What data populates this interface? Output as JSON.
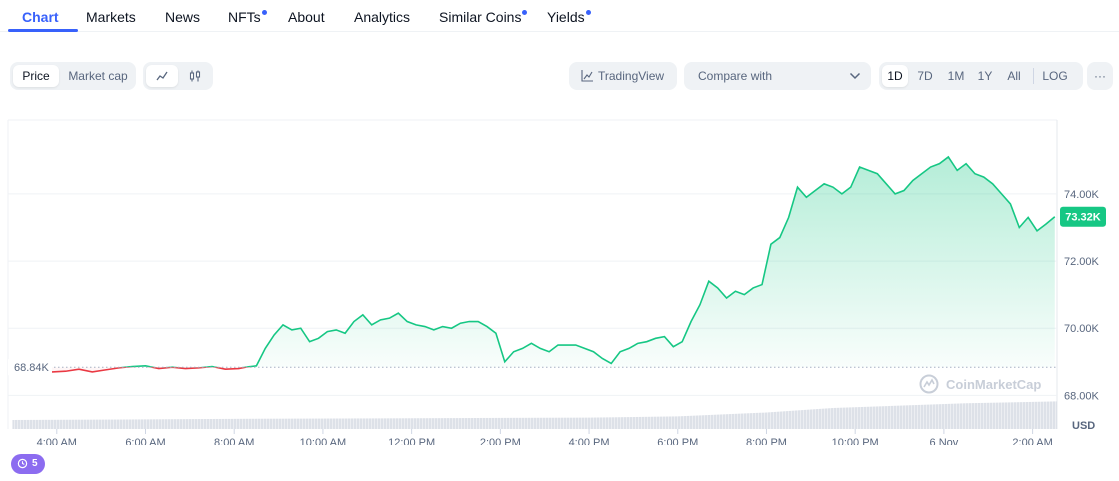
{
  "tabs": [
    {
      "label": "Chart",
      "active": true,
      "dot": false
    },
    {
      "label": "Markets",
      "active": false,
      "dot": false
    },
    {
      "label": "News",
      "active": false,
      "dot": false
    },
    {
      "label": "NFTs",
      "active": false,
      "dot": true
    },
    {
      "label": "About",
      "active": false,
      "dot": false
    },
    {
      "label": "Analytics",
      "active": false,
      "dot": false
    },
    {
      "label": "Similar Coins",
      "active": false,
      "dot": true
    },
    {
      "label": "Yields",
      "active": false,
      "dot": true
    }
  ],
  "toolbar": {
    "price_label": "Price",
    "marketcap_label": "Market cap",
    "tradingview_label": "TradingView",
    "compare_label": "Compare with",
    "ranges": [
      "1D",
      "7D",
      "1M",
      "1Y",
      "All"
    ],
    "selected_range": "1D",
    "log_label": "LOG",
    "more_label": "···"
  },
  "colors": {
    "accent": "#3861fb",
    "up": "#16c784",
    "down": "#ea3943"
  },
  "watermark": "CoinMarketCap",
  "badge_count": "5",
  "chart_data": {
    "type": "line",
    "currency_label": "USD",
    "open_price_label": "68.84K",
    "open_price": 68840,
    "current_price_label": "73.32K",
    "current_price": 73320,
    "ylim": [
      67000,
      76200
    ],
    "y_ticks": [
      {
        "value": 68000,
        "label": "68.00K"
      },
      {
        "value": 70000,
        "label": "70.00K"
      },
      {
        "value": 72000,
        "label": "72.00K"
      },
      {
        "value": 74000,
        "label": "74.00K"
      }
    ],
    "x_ticks": [
      "4:00 AM",
      "6:00 AM",
      "8:00 AM",
      "10:00 AM",
      "12:00 PM",
      "2:00 PM",
      "4:00 PM",
      "6:00 PM",
      "8:00 PM",
      "10:00 PM",
      "6 Nov",
      "2:00 AM"
    ],
    "x_tick_hours": [
      4,
      6,
      8,
      10,
      12,
      14,
      16,
      18,
      20,
      22,
      24,
      26
    ],
    "xlim": [
      2.9,
      26.55
    ],
    "series": [
      {
        "points": [
          [
            3.0,
            68.84
          ],
          [
            3.3,
            68.8
          ],
          [
            3.6,
            68.75
          ],
          [
            3.9,
            68.7
          ],
          [
            4.2,
            68.72
          ],
          [
            4.5,
            68.78
          ],
          [
            4.8,
            68.7
          ],
          [
            5.1,
            68.76
          ],
          [
            5.4,
            68.82
          ],
          [
            5.7,
            68.86
          ],
          [
            6.0,
            68.88
          ],
          [
            6.3,
            68.8
          ],
          [
            6.6,
            68.84
          ],
          [
            6.9,
            68.8
          ],
          [
            7.2,
            68.82
          ],
          [
            7.5,
            68.86
          ],
          [
            7.8,
            68.78
          ],
          [
            8.1,
            68.8
          ],
          [
            8.3,
            68.85
          ],
          [
            8.5,
            68.88
          ],
          [
            8.7,
            69.4
          ],
          [
            8.9,
            69.8
          ],
          [
            9.1,
            70.1
          ],
          [
            9.3,
            69.95
          ],
          [
            9.5,
            70.0
          ],
          [
            9.7,
            69.6
          ],
          [
            9.9,
            69.7
          ],
          [
            10.1,
            69.9
          ],
          [
            10.3,
            69.95
          ],
          [
            10.5,
            69.85
          ],
          [
            10.7,
            70.2
          ],
          [
            10.9,
            70.4
          ],
          [
            11.1,
            70.1
          ],
          [
            11.3,
            70.25
          ],
          [
            11.5,
            70.3
          ],
          [
            11.7,
            70.45
          ],
          [
            11.9,
            70.2
          ],
          [
            12.1,
            70.1
          ],
          [
            12.3,
            70.05
          ],
          [
            12.5,
            69.95
          ],
          [
            12.7,
            70.05
          ],
          [
            12.9,
            70.0
          ],
          [
            13.1,
            70.15
          ],
          [
            13.3,
            70.2
          ],
          [
            13.5,
            70.2
          ],
          [
            13.7,
            70.05
          ],
          [
            13.9,
            69.85
          ],
          [
            14.1,
            69.0
          ],
          [
            14.3,
            69.3
          ],
          [
            14.5,
            69.4
          ],
          [
            14.7,
            69.55
          ],
          [
            14.9,
            69.4
          ],
          [
            15.1,
            69.3
          ],
          [
            15.3,
            69.5
          ],
          [
            15.5,
            69.5
          ],
          [
            15.7,
            69.5
          ],
          [
            15.9,
            69.4
          ],
          [
            16.1,
            69.3
          ],
          [
            16.3,
            69.1
          ],
          [
            16.5,
            68.95
          ],
          [
            16.7,
            69.3
          ],
          [
            16.9,
            69.4
          ],
          [
            17.1,
            69.55
          ],
          [
            17.3,
            69.6
          ],
          [
            17.5,
            69.7
          ],
          [
            17.7,
            69.75
          ],
          [
            17.9,
            69.45
          ],
          [
            18.1,
            69.6
          ],
          [
            18.3,
            70.2
          ],
          [
            18.5,
            70.7
          ],
          [
            18.7,
            71.4
          ],
          [
            18.9,
            71.2
          ],
          [
            19.1,
            70.9
          ],
          [
            19.3,
            71.1
          ],
          [
            19.5,
            71.0
          ],
          [
            19.7,
            71.2
          ],
          [
            19.9,
            71.3
          ],
          [
            20.1,
            72.5
          ],
          [
            20.3,
            72.7
          ],
          [
            20.5,
            73.3
          ],
          [
            20.7,
            74.2
          ],
          [
            20.9,
            73.9
          ],
          [
            21.1,
            74.1
          ],
          [
            21.3,
            74.3
          ],
          [
            21.5,
            74.2
          ],
          [
            21.7,
            74.0
          ],
          [
            21.9,
            74.2
          ],
          [
            22.1,
            74.8
          ],
          [
            22.3,
            74.7
          ],
          [
            22.5,
            74.6
          ],
          [
            22.7,
            74.3
          ],
          [
            22.9,
            74.0
          ],
          [
            23.1,
            74.1
          ],
          [
            23.3,
            74.4
          ],
          [
            23.5,
            74.6
          ],
          [
            23.7,
            74.8
          ],
          [
            23.9,
            74.9
          ],
          [
            24.1,
            75.1
          ],
          [
            24.3,
            74.7
          ],
          [
            24.5,
            74.9
          ],
          [
            24.7,
            74.6
          ],
          [
            24.9,
            74.5
          ],
          [
            25.1,
            74.3
          ],
          [
            25.3,
            74.0
          ],
          [
            25.5,
            73.7
          ],
          [
            25.7,
            73.0
          ],
          [
            25.9,
            73.3
          ],
          [
            26.1,
            72.9
          ],
          [
            26.3,
            73.1
          ],
          [
            26.5,
            73.32
          ]
        ]
      }
    ],
    "volume": [
      [
        3.0,
        0.3
      ],
      [
        6.0,
        0.32
      ],
      [
        8.5,
        0.34
      ],
      [
        12.0,
        0.36
      ],
      [
        16.0,
        0.38
      ],
      [
        18.0,
        0.42
      ],
      [
        20.0,
        0.55
      ],
      [
        21.5,
        0.7
      ],
      [
        23.0,
        0.78
      ],
      [
        24.5,
        0.86
      ],
      [
        26.55,
        0.92
      ]
    ]
  }
}
